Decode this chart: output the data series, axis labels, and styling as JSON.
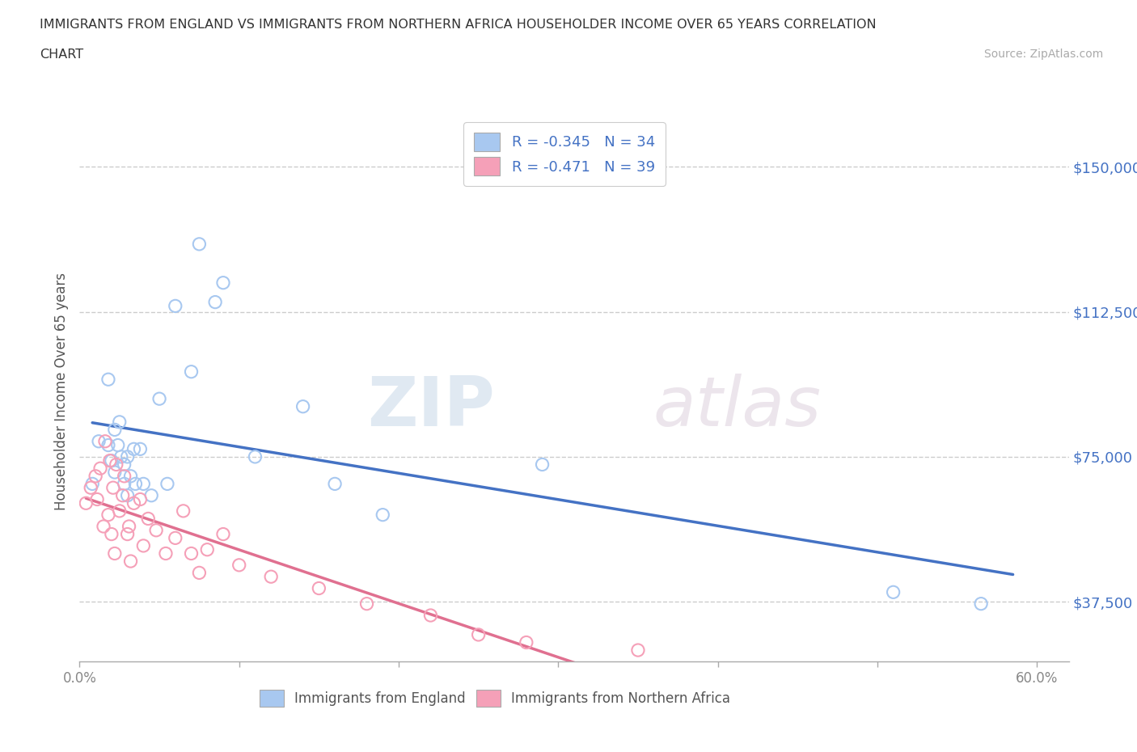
{
  "title_line1": "IMMIGRANTS FROM ENGLAND VS IMMIGRANTS FROM NORTHERN AFRICA HOUSEHOLDER INCOME OVER 65 YEARS CORRELATION",
  "title_line2": "CHART",
  "source": "Source: ZipAtlas.com",
  "ylabel": "Householder Income Over 65 years",
  "R_england": -0.345,
  "N_england": 34,
  "R_n_africa": -0.471,
  "N_n_africa": 39,
  "color_england": "#a8c8f0",
  "color_n_africa": "#f5a0b8",
  "color_england_line": "#4472c4",
  "color_n_africa_line": "#e07090",
  "color_blue": "#4472c4",
  "xlim_min": 0.0,
  "xlim_max": 0.62,
  "ylim_min": 22000,
  "ylim_max": 162000,
  "yticks": [
    37500,
    75000,
    112500,
    150000
  ],
  "ytick_labels": [
    "$37,500",
    "$75,000",
    "$112,500",
    "$150,000"
  ],
  "xticks": [
    0.0,
    0.1,
    0.2,
    0.3,
    0.4,
    0.5,
    0.6
  ],
  "xtick_labels_show": [
    "0.0%",
    "",
    "",
    "",
    "",
    "",
    "60.0%"
  ],
  "england_x": [
    0.008,
    0.012,
    0.018,
    0.018,
    0.02,
    0.022,
    0.022,
    0.024,
    0.025,
    0.026,
    0.028,
    0.028,
    0.03,
    0.03,
    0.032,
    0.034,
    0.035,
    0.038,
    0.04,
    0.045,
    0.05,
    0.055,
    0.06,
    0.07,
    0.075,
    0.085,
    0.09,
    0.11,
    0.14,
    0.16,
    0.19,
    0.29,
    0.51,
    0.565
  ],
  "england_y": [
    68000,
    79000,
    95000,
    78000,
    74000,
    82000,
    71000,
    78000,
    84000,
    75000,
    73000,
    68000,
    65000,
    75000,
    70000,
    77000,
    68000,
    77000,
    68000,
    65000,
    90000,
    68000,
    114000,
    97000,
    130000,
    115000,
    120000,
    75000,
    88000,
    68000,
    60000,
    73000,
    40000,
    37000
  ],
  "n_africa_x": [
    0.004,
    0.007,
    0.01,
    0.011,
    0.013,
    0.015,
    0.016,
    0.018,
    0.019,
    0.02,
    0.021,
    0.022,
    0.023,
    0.025,
    0.027,
    0.028,
    0.03,
    0.031,
    0.032,
    0.034,
    0.038,
    0.04,
    0.043,
    0.048,
    0.054,
    0.06,
    0.065,
    0.07,
    0.075,
    0.08,
    0.09,
    0.1,
    0.12,
    0.15,
    0.18,
    0.22,
    0.25,
    0.28,
    0.35
  ],
  "n_africa_y": [
    63000,
    67000,
    70000,
    64000,
    72000,
    57000,
    79000,
    60000,
    74000,
    55000,
    67000,
    50000,
    73000,
    61000,
    65000,
    70000,
    55000,
    57000,
    48000,
    63000,
    64000,
    52000,
    59000,
    56000,
    50000,
    54000,
    61000,
    50000,
    45000,
    51000,
    55000,
    47000,
    44000,
    41000,
    37000,
    34000,
    29000,
    27000,
    25000
  ],
  "watermark_zip": "ZIP",
  "watermark_atlas": "atlas",
  "bg_color": "#ffffff",
  "grid_color": "#cccccc",
  "legend1_label": "Immigrants from England",
  "legend2_label": "Immigrants from Northern Africa"
}
